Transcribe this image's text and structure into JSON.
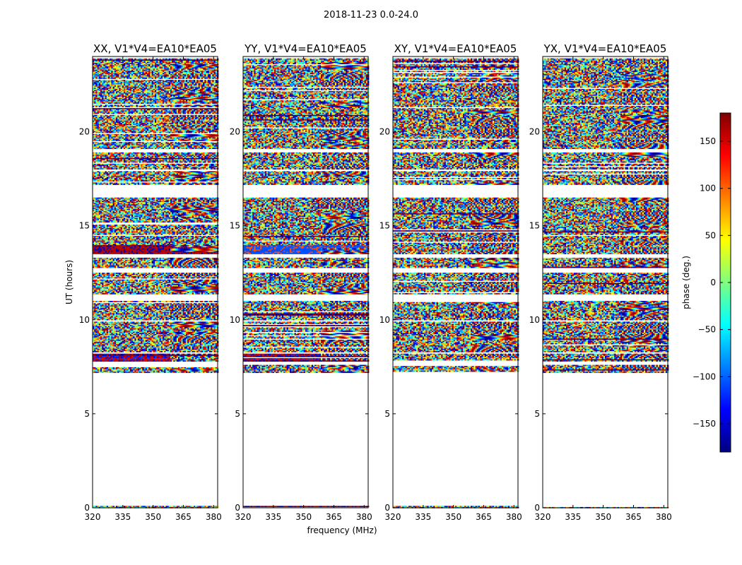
{
  "figure_title": "2018-11-23 0.0-24.0",
  "chart_data": [
    {
      "type": "heatmap",
      "title": "XX, V1*V4=EA10*EA05",
      "xlabel": "",
      "ylabel": "UT (hours)",
      "xlim": [
        320,
        382
      ],
      "ylim": [
        0,
        24
      ],
      "xticks": [
        "320",
        "335",
        "350",
        "365",
        "380"
      ],
      "yticks": [
        "0",
        "5",
        "10",
        "15",
        "20"
      ],
      "value": "phase (deg.)"
    },
    {
      "type": "heatmap",
      "title": "YY, V1*V4=EA10*EA05",
      "xlabel": "frequency (MHz)",
      "ylabel": "",
      "xlim": [
        320,
        382
      ],
      "ylim": [
        0,
        24
      ],
      "xticks": [
        "320",
        "335",
        "350",
        "365",
        "380"
      ],
      "yticks": [
        "0",
        "5",
        "10",
        "15",
        "20"
      ],
      "value": "phase (deg.)"
    },
    {
      "type": "heatmap",
      "title": "XY, V1*V4=EA10*EA05",
      "xlabel": "",
      "ylabel": "",
      "xlim": [
        320,
        382
      ],
      "ylim": [
        0,
        24
      ],
      "xticks": [
        "320",
        "335",
        "350",
        "365",
        "380"
      ],
      "yticks": [
        "0",
        "5",
        "10",
        "15",
        "20"
      ],
      "value": "phase (deg.)"
    },
    {
      "type": "heatmap",
      "title": "YX, V1*V4=EA10*EA05",
      "xlabel": "",
      "ylabel": "",
      "xlim": [
        320,
        382
      ],
      "ylim": [
        0,
        24
      ],
      "xticks": [
        "320",
        "335",
        "350",
        "365",
        "380"
      ],
      "yticks": [
        "0",
        "5",
        "10",
        "15",
        "20"
      ],
      "value": "phase (deg.)"
    }
  ],
  "colorbar": {
    "label": "phase (deg.)",
    "range": [
      -180,
      180
    ],
    "ticks": [
      "150",
      "100",
      "50",
      "0",
      "−50",
      "−100",
      "−150"
    ],
    "tick_values": [
      150,
      100,
      50,
      0,
      -50,
      -100,
      -150
    ],
    "colormap": "jet"
  },
  "data_coverage_hours": [
    [
      7.2,
      7.6
    ],
    [
      7.8,
      8.2
    ],
    [
      8.3,
      9.9
    ],
    [
      10.0,
      11.0
    ],
    [
      11.4,
      12.5
    ],
    [
      12.8,
      13.3
    ],
    [
      13.5,
      16.5
    ],
    [
      17.2,
      17.9
    ],
    [
      18.0,
      18.9
    ],
    [
      19.1,
      23.9
    ],
    [
      0.0,
      0.1
    ]
  ],
  "colors": {
    "jet": [
      "#00007f",
      "#0000ff",
      "#007fff",
      "#00ffff",
      "#7fff7f",
      "#ffff00",
      "#ff7f00",
      "#ff0000",
      "#7f0000"
    ]
  }
}
